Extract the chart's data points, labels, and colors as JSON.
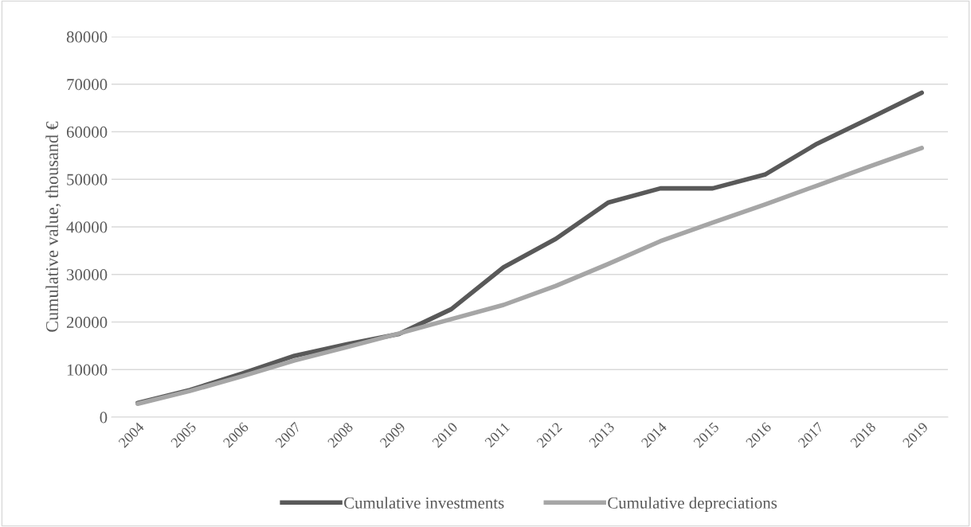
{
  "chart_data": {
    "type": "line",
    "ylabel": "Cumulative value, thousand €",
    "categories": [
      "2004",
      "2005",
      "2006",
      "2007",
      "2008",
      "2009",
      "2010",
      "2011",
      "2012",
      "2013",
      "2014",
      "2015",
      "2016",
      "2017",
      "2018",
      "2019"
    ],
    "series": [
      {
        "name": "Cumulative investments",
        "color": "#595959",
        "values": [
          3000,
          5700,
          9200,
          12900,
          15300,
          17500,
          22700,
          31500,
          37500,
          45100,
          48100,
          48100,
          51000,
          57500,
          62800,
          68200
        ]
      },
      {
        "name": "Cumulative depreciations",
        "color": "#a6a6a6",
        "values": [
          2800,
          5500,
          8600,
          11900,
          14700,
          17600,
          20600,
          23600,
          27600,
          32200,
          37000,
          40900,
          44700,
          48700,
          52700,
          56600
        ]
      }
    ],
    "ylim": [
      0,
      80000
    ],
    "yticks": [
      0,
      10000,
      20000,
      30000,
      40000,
      50000,
      60000,
      70000,
      80000
    ],
    "grid": "y",
    "legend": "bottom",
    "marker": "none",
    "line_style": "solid"
  }
}
